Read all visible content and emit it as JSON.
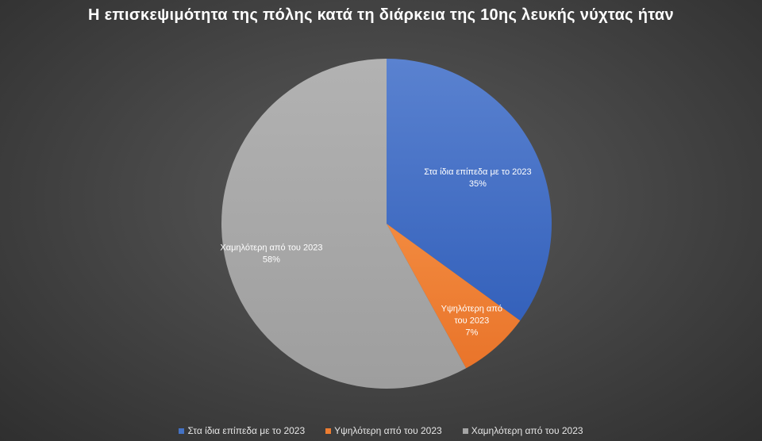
{
  "chart_data": {
    "type": "pie",
    "title": "Η επισκεψιμότητα της πόλης κατά τη διάρκεια της 10ης λευκής νύχτας ήταν",
    "categories": [
      "Στα ίδια επίπεδα με το 2023",
      "Υψηλότερη από του 2023",
      "Χαμηλότερη από του 2023"
    ],
    "values": [
      35,
      7,
      58
    ],
    "value_labels": [
      "35%",
      "7%",
      "58%"
    ],
    "slice_label_lines": [
      [
        "Στα ίδια επίπεδα με το 2023"
      ],
      [
        "Υψηλότερη από",
        "του 2023"
      ],
      [
        "Χαμηλότερη από του 2023"
      ]
    ],
    "colors": [
      "#4472c4",
      "#ed7d31",
      "#a5a5a5"
    ],
    "legend_position": "bottom"
  }
}
